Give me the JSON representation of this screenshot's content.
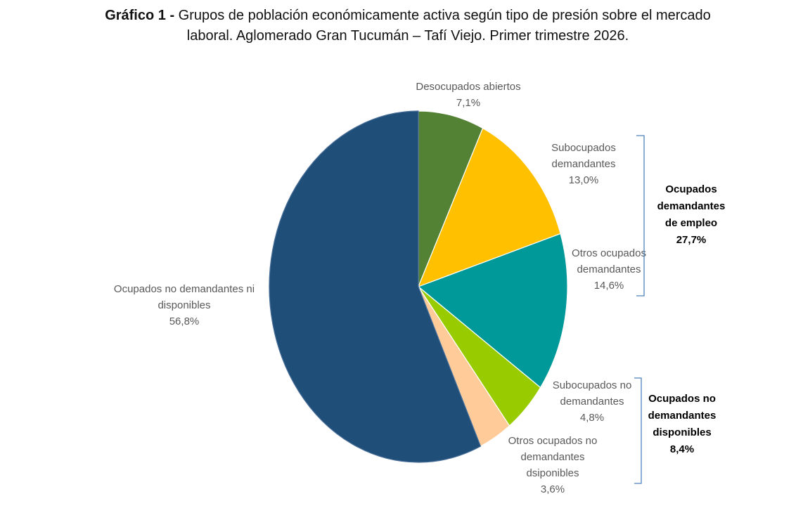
{
  "title": {
    "bold": "Gráfico 1 -",
    "text": " Grupos de población económicamente activa según tipo de presión sobre el mercado laboral. Aglomerado Gran Tucumán – Tafí Viejo. Primer trimestre 2026."
  },
  "chart_data": {
    "type": "pie",
    "title": "Gráfico 1 - Grupos de población económicamente activa según tipo de presión sobre el mercado laboral. Aglomerado Gran Tucumán – Tafí Viejo. Primer trimestre 2026.",
    "start": "12 o'clock, clockwise",
    "slices": [
      {
        "label": "Desocupados abiertos",
        "value": 7.1,
        "value_label": "7,1%",
        "color": "#548235",
        "label_lines": [
          "Desocupados abiertos",
          "7,1%"
        ]
      },
      {
        "label": "Subocupados demandantes",
        "value": 13.0,
        "value_label": "13,0%",
        "color": "#ffc000",
        "label_lines": [
          "Subocupados",
          "demandantes",
          "13,0%"
        ]
      },
      {
        "label": "Otros ocupados demandantes",
        "value": 14.6,
        "value_label": "14,6%",
        "color": "#009999",
        "label_lines": [
          "Otros ocupados",
          "demandantes",
          "14,6%"
        ]
      },
      {
        "label": "Subocupados no demandantes",
        "value": 4.8,
        "value_label": "4,8%",
        "color": "#99cc00",
        "label_lines": [
          "Subocupados no",
          "demandantes",
          "4,8%"
        ]
      },
      {
        "label": "Otros ocupados no demandantes dsiponibles",
        "value": 3.6,
        "value_label": "3,6%",
        "color": "#ffcc99",
        "label_lines": [
          "Otros ocupados no",
          "demandantes",
          "dsiponibles",
          "3,6%"
        ]
      },
      {
        "label": "Ocupados no demandantes ni disponibles",
        "value": 56.8,
        "value_label": "56,8%",
        "color": "#1f4e79",
        "label_lines": [
          "Ocupados no demandantes ni",
          "disponibles",
          "56,8%"
        ]
      }
    ],
    "groups": [
      {
        "label_lines": [
          "Ocupados",
          "demandantes",
          "de empleo",
          "27,7%"
        ],
        "members": [
          "Subocupados demandantes",
          "Otros ocupados demandantes"
        ]
      },
      {
        "label_lines": [
          "Ocupados no",
          "demandantes",
          "disponibles",
          "8,4%"
        ],
        "members": [
          "Subocupados no demandantes",
          "Otros ocupados no demandantes dsiponibles"
        ]
      }
    ]
  }
}
